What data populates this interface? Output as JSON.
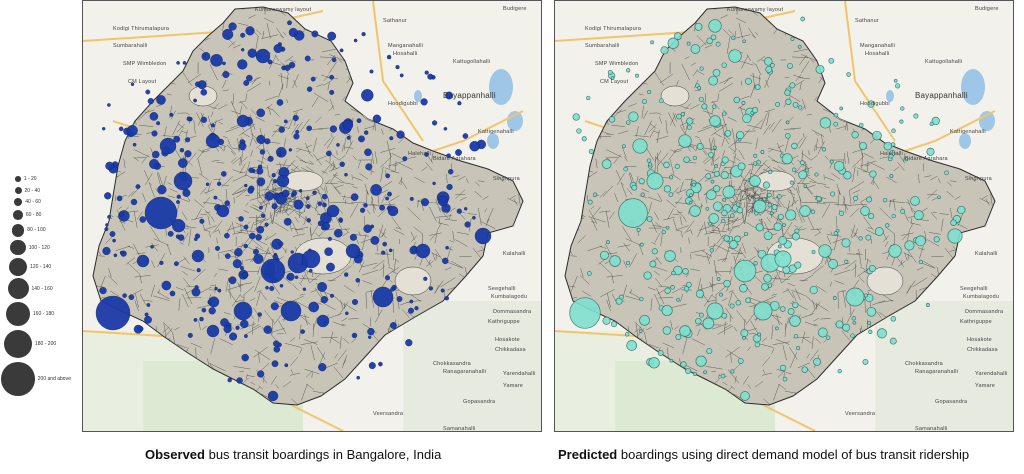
{
  "legend": {
    "items": [
      "1 - 20",
      "20 - 40",
      "40 - 60",
      "60 - 80",
      "80 - 100",
      "100 - 120",
      "120 - 140",
      "140 - 160",
      "160 - 180",
      "180 - 200",
      "200 and above"
    ]
  },
  "colors": {
    "observed": "#1a3aa8",
    "predicted": "#7fe0cf",
    "ward_fill": "#c8c4b8",
    "ward_line": "#2c2c2c",
    "legend_dot": "#3a3a3a"
  },
  "maps": {
    "places": [
      "Kumaraswamy layout",
      "Sathanur",
      "Kodigi Thirumalapura",
      "Sumbarahalli",
      "SMP Wimbledon",
      "CM Layout",
      "Manganahalli",
      "Hosahalli",
      "Kattugollahalli",
      "Budigere",
      "Bayappanhalli",
      "Hoodigubbi",
      "Halehalli",
      "Bidare Agrahara",
      "Singhpura",
      "Kattigenahalli",
      "Kalahalli",
      "Seegehalli",
      "Kumbalagodu",
      "Dommasandra",
      "Kathriguppe",
      "Hosakote",
      "Chikkadasa",
      "Yarendahalli",
      "Chokkasandra",
      "Yamare",
      "Ranagaranahalli",
      "Gopasandra",
      "Veersandra",
      "Samanahalli"
    ]
  },
  "captions": {
    "left_bold": "Observed",
    "left_rest": " bus transit boardings in Bangalore, India",
    "right_bold": "Predicted",
    "right_rest": " boardings using direct demand model of bus transit ridership"
  }
}
